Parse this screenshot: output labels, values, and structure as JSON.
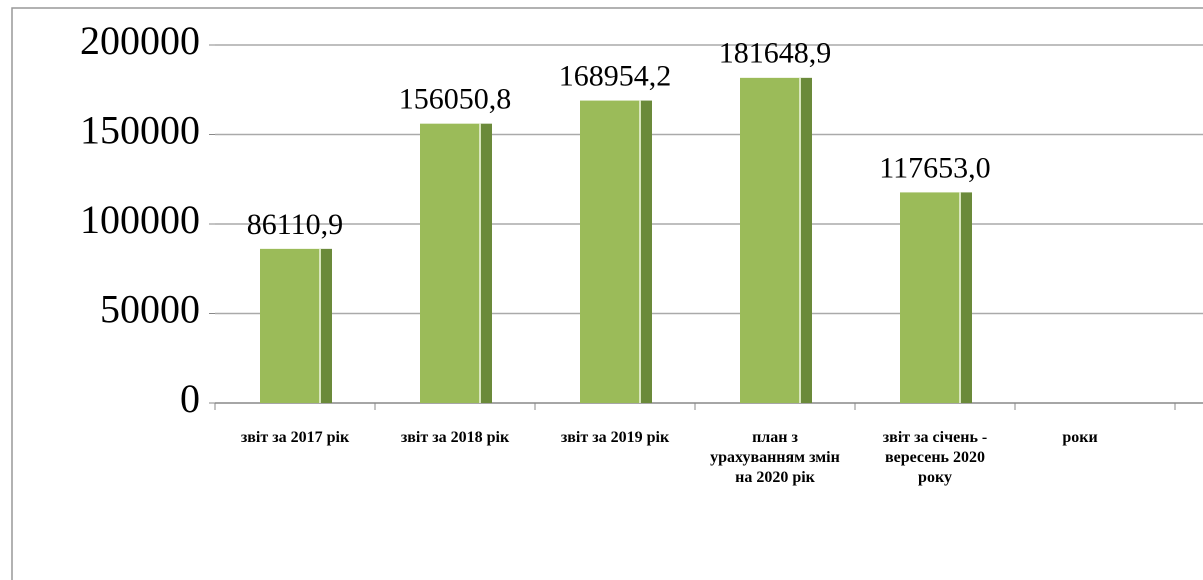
{
  "chart_data": {
    "type": "bar",
    "categories": [
      "звіт за 2017 рік",
      "звіт за 2018 рік",
      "звіт за 2019 рік",
      "план з урахуванням змін на  2020 рік",
      "звіт за січень - вересень 2020 року",
      "роки"
    ],
    "values": [
      86110.9,
      156050.8,
      168954.2,
      181648.9,
      117653.0,
      null
    ],
    "value_labels": [
      "86110,9",
      "156050,8",
      "168954,2",
      "181648,9",
      "117653,0",
      null
    ],
    "color": "#9bbb59",
    "ylim": [
      0,
      200000
    ],
    "yticks": [
      0,
      50000,
      100000,
      150000,
      200000
    ],
    "grid": true
  }
}
